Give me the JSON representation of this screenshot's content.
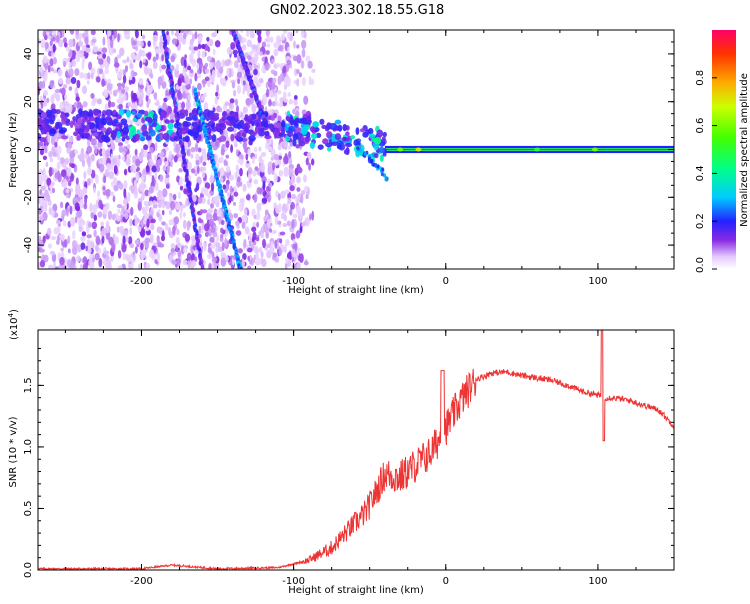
{
  "title": "GN02.2023.302.18.55.G18",
  "colorbar": {
    "label": "Normalized spectral amplitude",
    "ticks": [
      "0.0",
      "0.2",
      "0.4",
      "0.6",
      "0.8"
    ],
    "range": [
      0,
      1
    ]
  },
  "chart_data": [
    {
      "type": "heatmap",
      "xlabel": "Height of straight line (km)",
      "ylabel": "Frequency (Hz)",
      "xlim": [
        -268,
        150
      ],
      "ylim": [
        -50,
        50
      ],
      "xticks": [
        -200,
        -100,
        0,
        100
      ],
      "xtick_labels": [
        "-200",
        "-100",
        "0",
        "100"
      ],
      "yticks": [
        -40,
        -20,
        0,
        20,
        40
      ],
      "ytick_labels": [
        "-40",
        "-20",
        "0",
        "20",
        "40"
      ],
      "features": [
        {
          "name": "carrier",
          "x": [
            -40,
            150
          ],
          "frequency": 0,
          "amplitude": 0.95
        },
        {
          "name": "scattered-branch",
          "x": [
            -268,
            -40
          ],
          "frequency": [
            10,
            2
          ],
          "amplitude": 0.35
        },
        {
          "name": "diagonal-line-1",
          "x": [
            -165,
            -135
          ],
          "frequency": [
            25,
            -50
          ],
          "amplitude": 0.25
        },
        {
          "name": "diagonal-line-2",
          "x": [
            -186,
            -160
          ],
          "frequency": [
            50,
            -50
          ],
          "amplitude": 0.15
        },
        {
          "name": "diagonal-line-3",
          "x": [
            -140,
            -118
          ],
          "frequency": [
            50,
            10
          ],
          "amplitude": 0.15
        }
      ]
    },
    {
      "type": "line",
      "xlabel": "Height of straight line (km)",
      "ylabel": "SNR (10 * v/v)",
      "y_multiplier": "(x10",
      "y_multiplier_exp": "4",
      "y_multiplier_close": ")",
      "xlim": [
        -268,
        150
      ],
      "ylim": [
        0,
        1.95
      ],
      "xticks": [
        -200,
        -100,
        0,
        100
      ],
      "xtick_labels": [
        "-200",
        "-100",
        "0",
        "100"
      ],
      "yticks": [
        0,
        0.5,
        1.0,
        1.5
      ],
      "ytick_labels": [
        "0.0",
        "0.5",
        "1.0",
        "1.5"
      ],
      "series": [
        {
          "color": "#ee3333",
          "x": [
            -268,
            -200,
            -180,
            -150,
            -110,
            -90,
            -75,
            -62,
            -52,
            -45,
            -40,
            -30,
            -20,
            -10,
            0,
            10,
            20,
            30,
            40,
            50,
            60,
            70,
            80,
            90,
            100,
            105,
            110,
            120,
            130,
            140,
            150
          ],
          "y": [
            0.01,
            0.01,
            0.04,
            0.01,
            0.02,
            0.08,
            0.18,
            0.35,
            0.48,
            0.65,
            0.78,
            0.75,
            0.85,
            0.95,
            1.15,
            1.38,
            1.55,
            1.6,
            1.61,
            1.58,
            1.56,
            1.54,
            1.5,
            1.45,
            1.42,
            1.4,
            1.4,
            1.38,
            1.34,
            1.3,
            1.17
          ]
        }
      ]
    }
  ]
}
